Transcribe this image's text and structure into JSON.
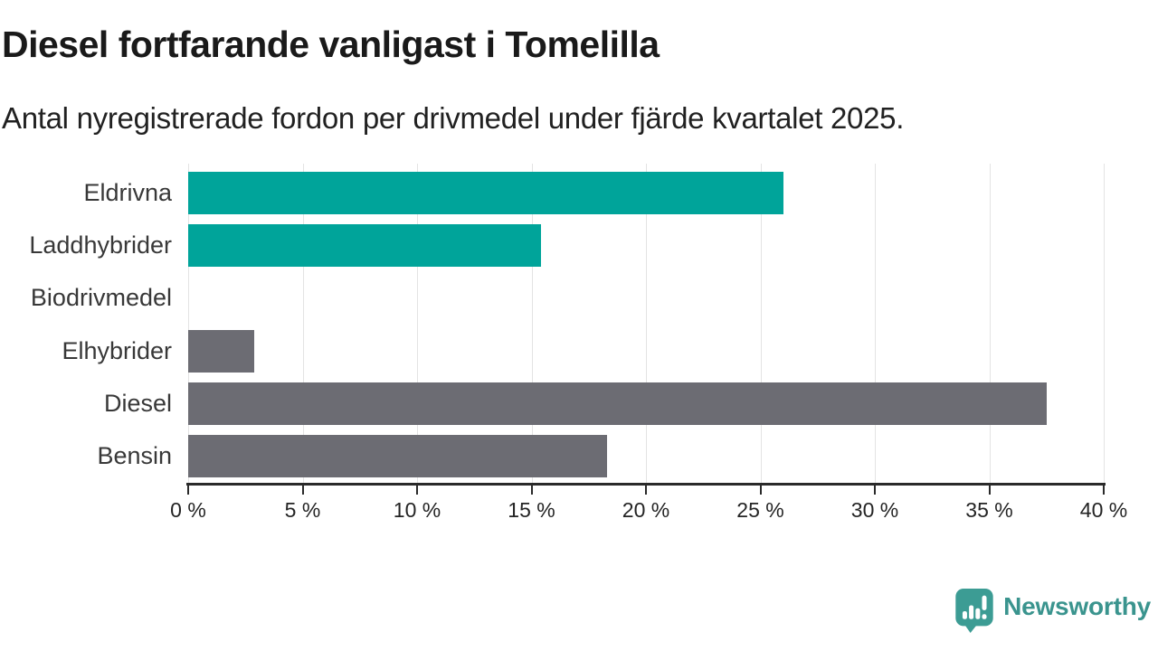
{
  "header": {
    "title": "Diesel fortfarande vanligast i Tomelilla",
    "subtitle": "Antal nyregistrerade fordon per drivmedel under fjärde kvartalet 2025."
  },
  "chart_data": {
    "type": "bar",
    "orientation": "horizontal",
    "title": "Diesel fortfarande vanligast i Tomelilla",
    "subtitle": "Antal nyregistrerade fordon per drivmedel under fjärde kvartalet 2025.",
    "categories": [
      "Eldrivna",
      "Laddhybrider",
      "Biodrivmedel",
      "Elhybrider",
      "Diesel",
      "Bensin"
    ],
    "values": [
      26,
      15.4,
      0,
      2.9,
      37.5,
      18.3
    ],
    "unit": "%",
    "xlim": [
      0,
      40
    ],
    "x_ticks": [
      0,
      5,
      10,
      15,
      20,
      25,
      30,
      35,
      40
    ],
    "x_tick_labels": [
      "0 %",
      "5 %",
      "10 %",
      "15 %",
      "20 %",
      "25 %",
      "30 %",
      "35 %",
      "40 %"
    ],
    "bar_colors": [
      "#00a49a",
      "#00a49a",
      "#6c6c73",
      "#6c6c73",
      "#6c6c73",
      "#6c6c73"
    ],
    "grid": true,
    "legend": false,
    "xlabel": "",
    "ylabel": ""
  },
  "colors": {
    "teal_bar": "#00a49a",
    "gray_bar": "#6c6c73",
    "gridline": "#e3e3e3",
    "axis": "#2a2a2a",
    "title_text": "#1a1a1a"
  },
  "footer": {
    "brand": "Newsworthy",
    "brand_color": "#3a948e",
    "icon": "newsworthy-logo-icon",
    "icon_color": "#3c9c94"
  }
}
